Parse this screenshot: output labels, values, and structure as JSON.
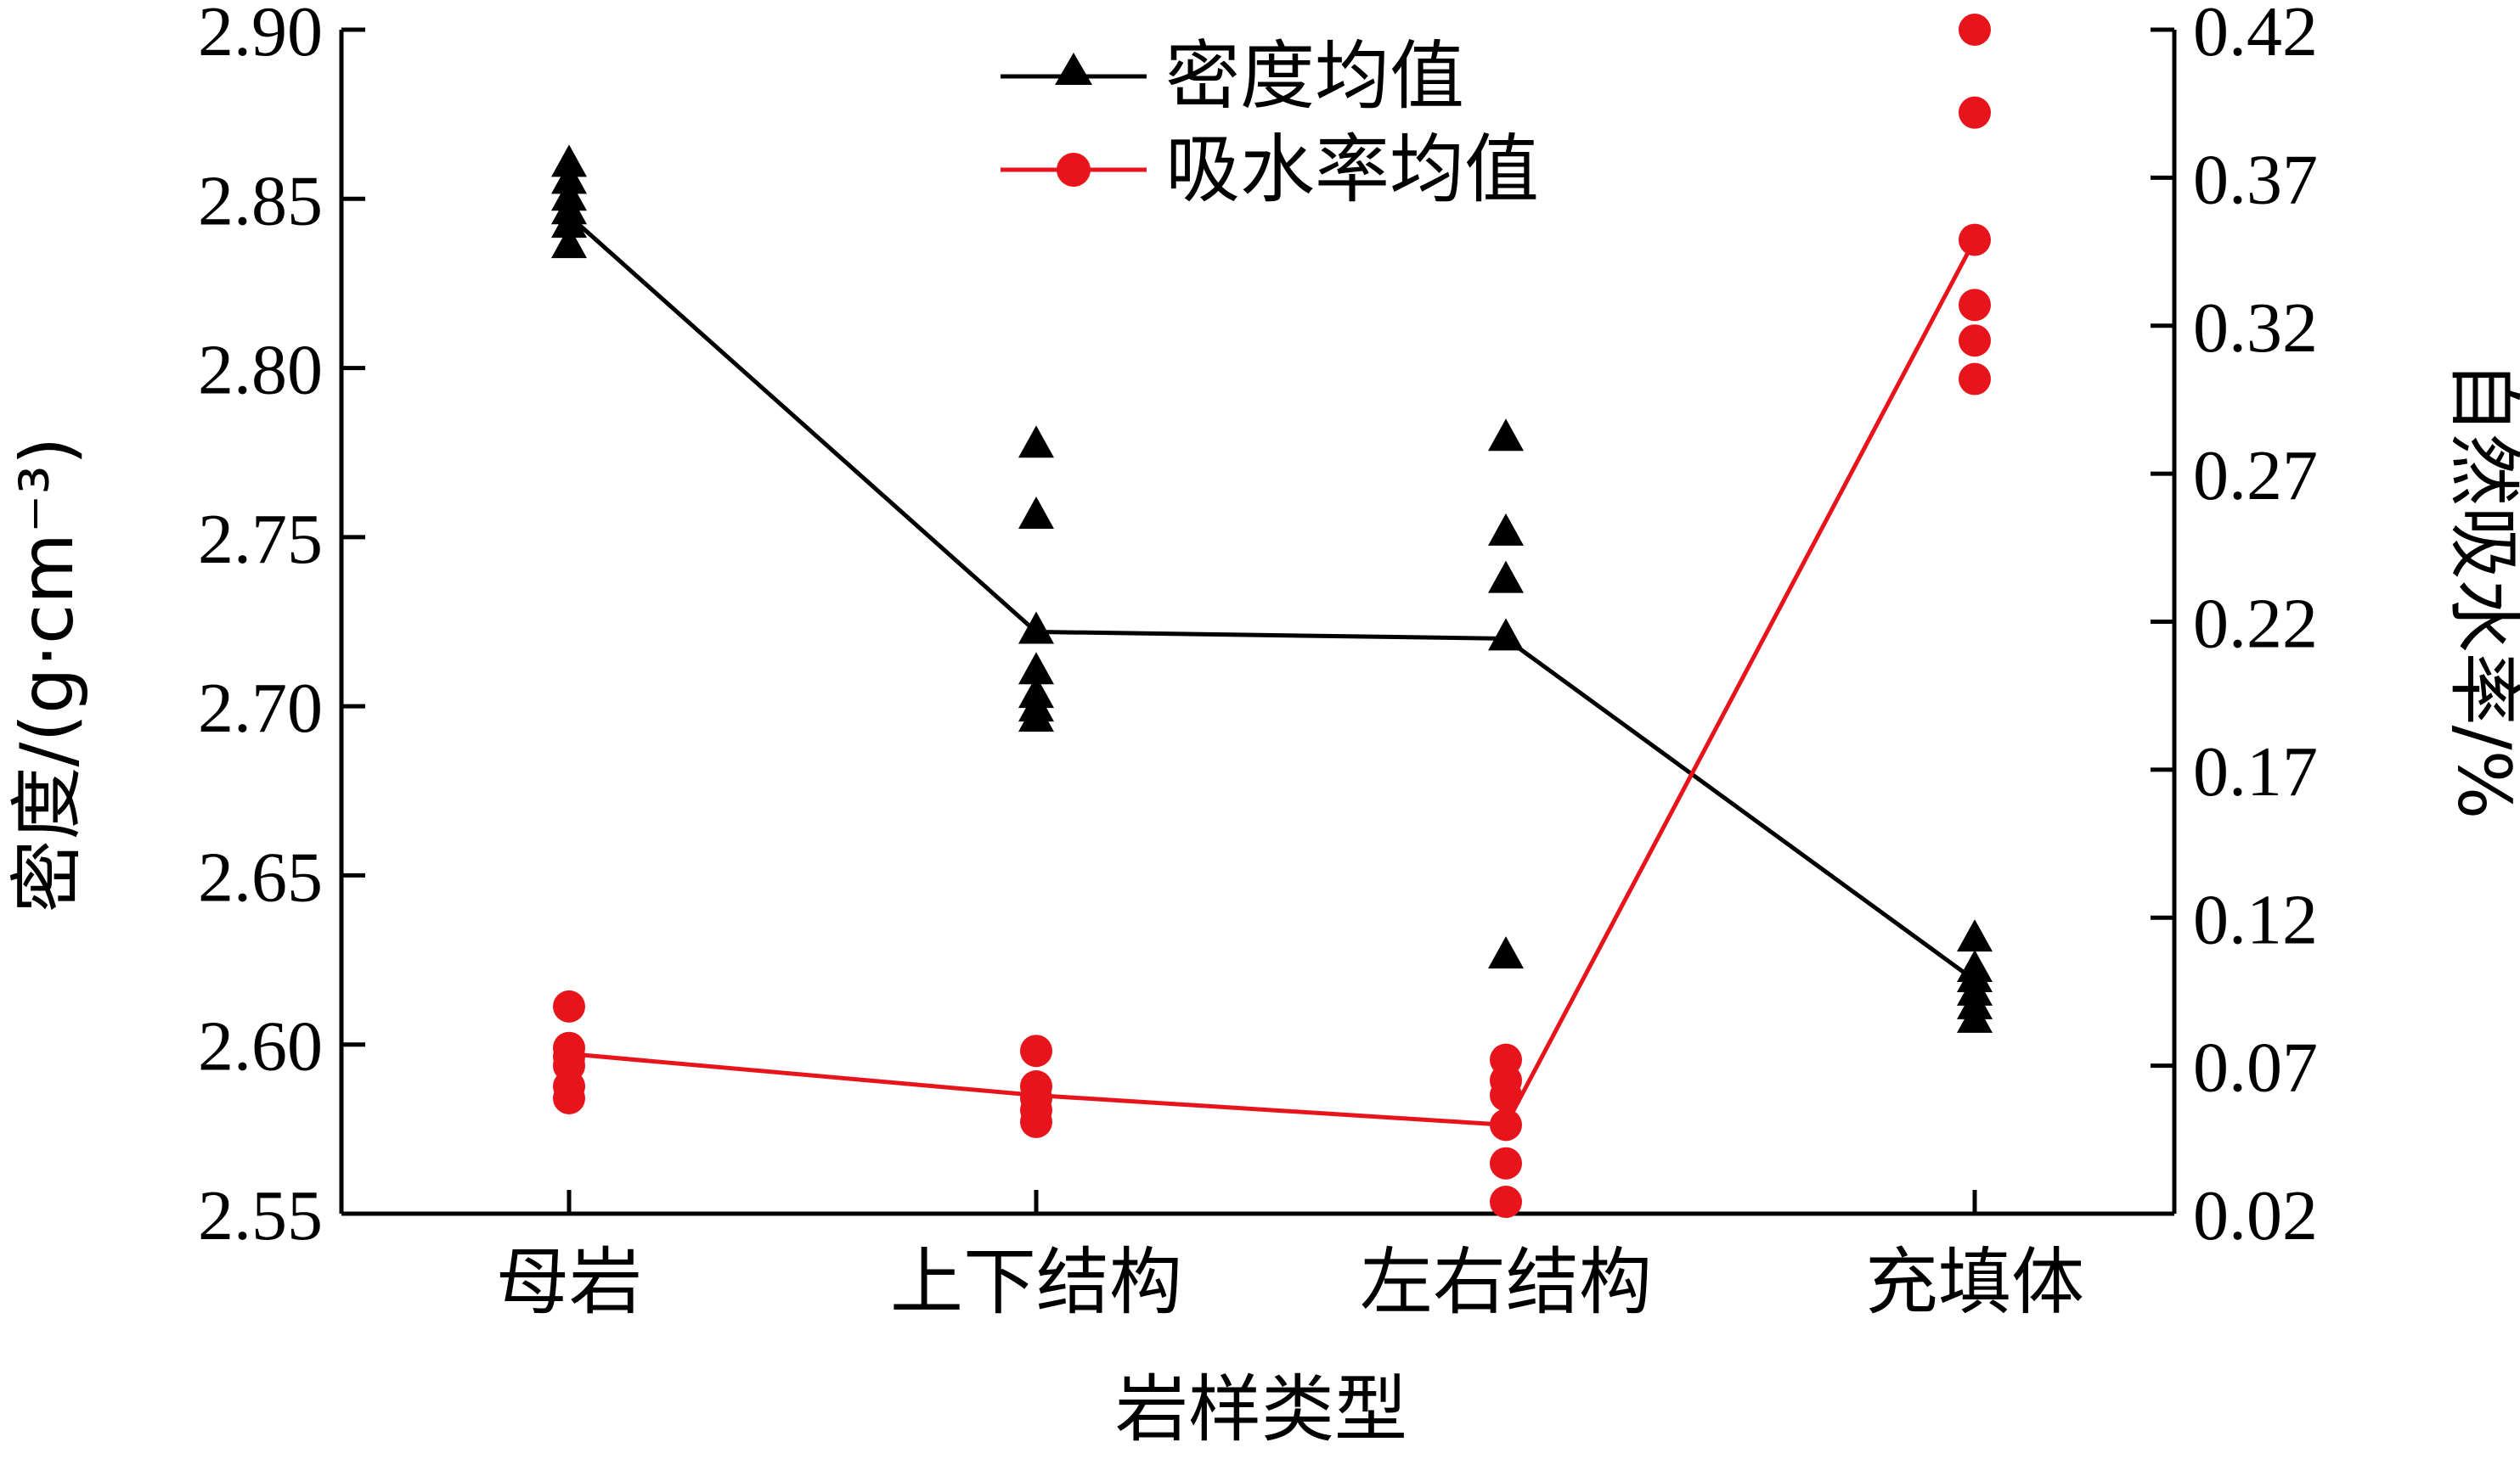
{
  "chart_data": {
    "type": "line",
    "categories": [
      "母岩",
      "上下结构",
      "左右结构",
      "充填体"
    ],
    "xlabel": "岩样类型",
    "ylabel_left": "密度/(g·cm⁻³)",
    "ylabel_right": "自然吸水率/%",
    "ylim_left": [
      2.55,
      2.9
    ],
    "yticks_left": [
      2.55,
      2.6,
      2.65,
      2.7,
      2.75,
      2.8,
      2.85,
      2.9
    ],
    "yticklabels_left": [
      "2.55",
      "2.60",
      "2.65",
      "2.70",
      "2.75",
      "2.80",
      "2.85",
      "2.90"
    ],
    "ylim_right": [
      0.02,
      0.42
    ],
    "yticks_right": [
      0.02,
      0.07,
      0.12,
      0.17,
      0.22,
      0.27,
      0.32,
      0.37,
      0.42
    ],
    "yticklabels_right": [
      "0.02",
      "0.07",
      "0.12",
      "0.17",
      "0.22",
      "0.27",
      "0.32",
      "0.37",
      "0.42"
    ],
    "legend_position": "top-center",
    "series": [
      {
        "name": "密度均值",
        "axis": "left",
        "color": "#000000",
        "marker": "triangle",
        "means": [
          2.845,
          2.722,
          2.72,
          2.619
        ],
        "points": [
          [
            2.86,
            2.855,
            2.85,
            2.846,
            2.842,
            2.836
          ],
          [
            2.777,
            2.756,
            2.722,
            2.71,
            2.703,
            2.699,
            2.696
          ],
          [
            2.779,
            2.751,
            2.737,
            2.72,
            2.626
          ],
          [
            2.631,
            2.622,
            2.619,
            2.615,
            2.611,
            2.607
          ]
        ]
      },
      {
        "name": "吸水率均值",
        "axis": "right",
        "color": "#e8141c",
        "marker": "circle",
        "means": [
          0.074,
          0.06,
          0.05,
          0.349
        ],
        "points": [
          [
            0.09,
            0.076,
            0.073,
            0.07,
            0.063,
            0.059
          ],
          [
            0.075,
            0.063,
            0.059,
            0.055,
            0.051
          ],
          [
            0.072,
            0.065,
            0.06,
            0.05,
            0.037,
            0.024
          ],
          [
            0.42,
            0.392,
            0.349,
            0.327,
            0.315,
            0.302
          ]
        ]
      }
    ]
  }
}
